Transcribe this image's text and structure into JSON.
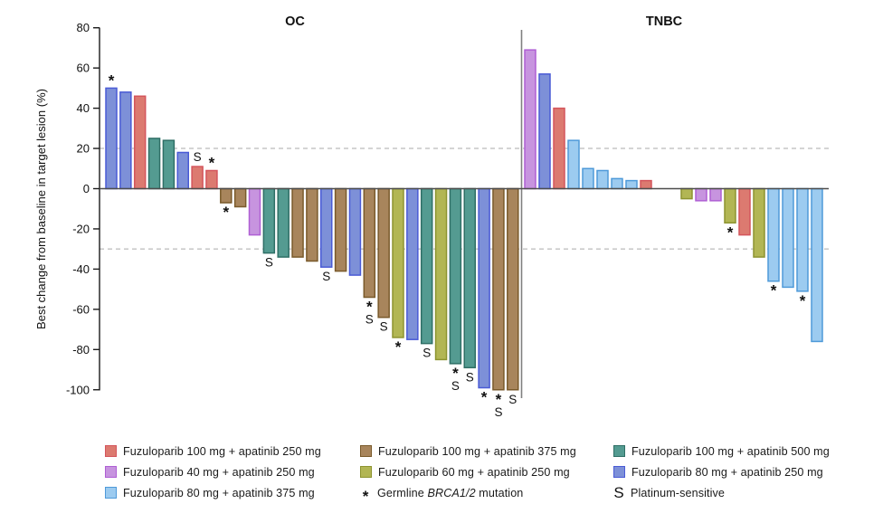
{
  "chart_data": {
    "type": "bar",
    "subtype": "waterfall",
    "title": "",
    "ylabel": "Best change from baseline in target lesion (%)",
    "xlabel": "",
    "ylim": [
      -100,
      80
    ],
    "yticks": [
      80,
      60,
      40,
      20,
      0,
      -20,
      -40,
      -60,
      -80,
      -100
    ],
    "grid": false,
    "reference_lines_pct": [
      20,
      -30
    ],
    "legend_position": "bottom",
    "doses": {
      "f100a250": {
        "label": "Fuzuloparib 100 mg + apatinib 250 mg",
        "fill": "#DC7A70",
        "stroke": "#D4555C"
      },
      "f100a375": {
        "label": "Fuzuloparib 100 mg + apatinib 375 mg",
        "fill": "#A8855C",
        "stroke": "#7A5A2B"
      },
      "f100a500": {
        "label": "Fuzuloparib 100 mg + apatinib 500 mg",
        "fill": "#549B91",
        "stroke": "#2F6F66"
      },
      "f40a250": {
        "label": "Fuzuloparib 40 mg + apatinib 250 mg",
        "fill": "#C794DF",
        "stroke": "#AF5FD4"
      },
      "f60a250": {
        "label": "Fuzuloparib 60 mg + apatinib 250 mg",
        "fill": "#B2B654",
        "stroke": "#8D9430"
      },
      "f80a250": {
        "label": "Fuzuloparib 80 mg + apatinib 250 mg",
        "fill": "#7D90D8",
        "stroke": "#4A5BD6"
      },
      "f80a375": {
        "label": "Fuzuloparib 80 mg + apatinib 375 mg",
        "fill": "#9CCBF0",
        "stroke": "#4F9AD9"
      }
    },
    "markers": {
      "brca": {
        "symbol": "*",
        "label_pre": "Germline ",
        "label_italic": "BRCA1/2",
        "label_post": " mutation"
      },
      "platinum": {
        "symbol": "S",
        "label": "Platinum-sensitive"
      }
    },
    "legend_columns": [
      [
        "f100a250",
        "f40a250",
        "f80a375"
      ],
      [
        "f100a375",
        "f60a250",
        "@brca"
      ],
      [
        "f100a500",
        "f80a250",
        "@platinum"
      ]
    ],
    "panels": [
      {
        "title": "OC",
        "bars": [
          {
            "dose": "f80a250",
            "value": 50,
            "marks": "*"
          },
          {
            "dose": "f80a250",
            "value": 48,
            "marks": ""
          },
          {
            "dose": "f100a250",
            "value": 46,
            "marks": ""
          },
          {
            "dose": "f100a500",
            "value": 25,
            "marks": ""
          },
          {
            "dose": "f100a500",
            "value": 24,
            "marks": ""
          },
          {
            "dose": "f80a250",
            "value": 18,
            "marks": ""
          },
          {
            "dose": "f100a250",
            "value": 11,
            "marks": "S"
          },
          {
            "dose": "f100a250",
            "value": 9,
            "marks": "*"
          },
          {
            "dose": "f100a375",
            "value": -7,
            "marks": "*"
          },
          {
            "dose": "f100a375",
            "value": -9,
            "marks": ""
          },
          {
            "dose": "f40a250",
            "value": -23,
            "marks": ""
          },
          {
            "dose": "f100a500",
            "value": -32,
            "marks": "S"
          },
          {
            "dose": "f100a500",
            "value": -34,
            "marks": ""
          },
          {
            "dose": "f100a375",
            "value": -34,
            "marks": ""
          },
          {
            "dose": "f100a375",
            "value": -36,
            "marks": ""
          },
          {
            "dose": "f80a250",
            "value": -39,
            "marks": "S"
          },
          {
            "dose": "f100a375",
            "value": -41,
            "marks": ""
          },
          {
            "dose": "f80a250",
            "value": -43,
            "marks": ""
          },
          {
            "dose": "f100a375",
            "value": -54,
            "marks": "*S"
          },
          {
            "dose": "f100a375",
            "value": -64,
            "marks": "S"
          },
          {
            "dose": "f60a250",
            "value": -74,
            "marks": "*"
          },
          {
            "dose": "f80a250",
            "value": -75,
            "marks": ""
          },
          {
            "dose": "f100a500",
            "value": -77,
            "marks": "S"
          },
          {
            "dose": "f60a250",
            "value": -85,
            "marks": ""
          },
          {
            "dose": "f100a500",
            "value": -87,
            "marks": "*S"
          },
          {
            "dose": "f100a500",
            "value": -89,
            "marks": "S"
          },
          {
            "dose": "f80a250",
            "value": -99,
            "marks": "*"
          },
          {
            "dose": "f100a375",
            "value": -100,
            "marks": "*S"
          },
          {
            "dose": "f100a375",
            "value": -100,
            "marks": "S"
          }
        ]
      },
      {
        "title": "TNBC",
        "bars": [
          {
            "dose": "f40a250",
            "value": 69,
            "marks": ""
          },
          {
            "dose": "f80a250",
            "value": 57,
            "marks": ""
          },
          {
            "dose": "f100a250",
            "value": 40,
            "marks": ""
          },
          {
            "dose": "f80a375",
            "value": 24,
            "marks": ""
          },
          {
            "dose": "f80a375",
            "value": 10,
            "marks": ""
          },
          {
            "dose": "f80a375",
            "value": 9,
            "marks": ""
          },
          {
            "dose": "f80a375",
            "value": 5,
            "marks": ""
          },
          {
            "dose": "f80a375",
            "value": 4,
            "marks": ""
          },
          {
            "dose": "f100a250",
            "value": 4,
            "marks": ""
          },
          {
            "dose": "f60a250",
            "value": -5,
            "marks": "",
            "gap_before": true
          },
          {
            "dose": "f40a250",
            "value": -6,
            "marks": ""
          },
          {
            "dose": "f40a250",
            "value": -6,
            "marks": ""
          },
          {
            "dose": "f60a250",
            "value": -17,
            "marks": "*"
          },
          {
            "dose": "f100a250",
            "value": -23,
            "marks": ""
          },
          {
            "dose": "f60a250",
            "value": -34,
            "marks": ""
          },
          {
            "dose": "f80a375",
            "value": -46,
            "marks": "*"
          },
          {
            "dose": "f80a375",
            "value": -49,
            "marks": ""
          },
          {
            "dose": "f80a375",
            "value": -51,
            "marks": "*"
          },
          {
            "dose": "f80a375",
            "value": -76,
            "marks": ""
          }
        ]
      }
    ]
  }
}
